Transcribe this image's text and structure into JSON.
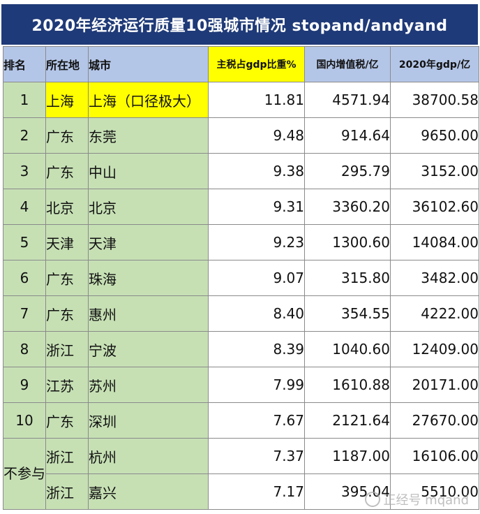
{
  "title": "2020年经济运行质量10强城市情况 stopand/andyand",
  "headers": {
    "rank": "排名",
    "province": "所在地",
    "city": "城市",
    "tax_ratio": "主税占gdp比重%",
    "vat": "国内增值税/亿",
    "gdp": "2020年gdp/亿"
  },
  "rows": [
    {
      "rank": "1",
      "province": "上海",
      "city": "上海（口径极大）",
      "tax_ratio": "11.81",
      "vat": "4571.94",
      "gdp": "38700.58"
    },
    {
      "rank": "2",
      "province": "广东",
      "city": "东莞",
      "tax_ratio": "9.48",
      "vat": "914.64",
      "gdp": "9650.00"
    },
    {
      "rank": "3",
      "province": "广东",
      "city": "中山",
      "tax_ratio": "9.38",
      "vat": "295.79",
      "gdp": "3152.00"
    },
    {
      "rank": "4",
      "province": "北京",
      "city": "北京",
      "tax_ratio": "9.31",
      "vat": "3360.20",
      "gdp": "36102.60"
    },
    {
      "rank": "5",
      "province": "天津",
      "city": "天津",
      "tax_ratio": "9.23",
      "vat": "1300.60",
      "gdp": "14084.00"
    },
    {
      "rank": "6",
      "province": "广东",
      "city": "珠海",
      "tax_ratio": "9.07",
      "vat": "315.80",
      "gdp": "3482.00"
    },
    {
      "rank": "7",
      "province": "广东",
      "city": "惠州",
      "tax_ratio": "8.40",
      "vat": "354.55",
      "gdp": "4222.00"
    },
    {
      "rank": "8",
      "province": "浙江",
      "city": "宁波",
      "tax_ratio": "8.39",
      "vat": "1040.60",
      "gdp": "12409.00"
    },
    {
      "rank": "9",
      "province": "江苏",
      "city": "苏州",
      "tax_ratio": "7.99",
      "vat": "1610.88",
      "gdp": "20171.00"
    },
    {
      "rank": "10",
      "province": "广东",
      "city": "深圳",
      "tax_ratio": "7.67",
      "vat": "2121.64",
      "gdp": "27670.00"
    }
  ],
  "extra_rank_label": "不参与",
  "extra_rows": [
    {
      "province": "浙江",
      "city": "杭州",
      "tax_ratio": "7.37",
      "vat": "1187.00",
      "gdp": "16106.00"
    },
    {
      "province": "浙江",
      "city": "嘉兴",
      "tax_ratio": "7.17",
      "vat": "395.04",
      "gdp": "5510.00"
    }
  ],
  "watermark": "正经号 mqand",
  "colors": {
    "title_bg": "#1f3a78",
    "header_blue": "#b4c6e7",
    "highlight_yellow": "#ffff00",
    "green": "#c6e0b4"
  }
}
